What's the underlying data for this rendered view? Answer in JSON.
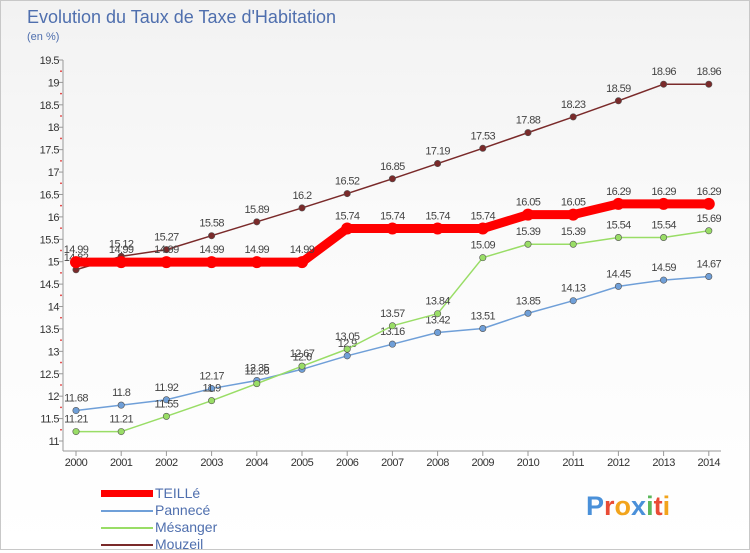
{
  "title": "Evolution du Taux de Taxe d'Habitation",
  "subtitle": "(en %)",
  "logo": {
    "text": "Proxiti",
    "letters": [
      {
        "char": "P",
        "color": "#4a90d9"
      },
      {
        "char": "r",
        "color": "#e94b35"
      },
      {
        "char": "o",
        "color": "#f2a41c"
      },
      {
        "char": "x",
        "color": "#4a90d9"
      },
      {
        "char": "i",
        "color": "#5cb85c"
      },
      {
        "char": "t",
        "color": "#e94b35"
      },
      {
        "char": "i",
        "color": "#f2a41c"
      }
    ]
  },
  "chart_data": {
    "type": "line",
    "title": "Evolution du Taux de Taxe d'Habitation",
    "ylabel": "(en %)",
    "x": [
      "2000",
      "2001",
      "2002",
      "2003",
      "2004",
      "2005",
      "2006",
      "2007",
      "2008",
      "2009",
      "2010",
      "2011",
      "2012",
      "2013",
      "2014"
    ],
    "ylim": [
      11,
      19.5
    ],
    "yticks": [
      "11",
      "11.5",
      "12",
      "12.5",
      "13",
      "13.5",
      "14",
      "14.5",
      "15",
      "15.5",
      "16",
      "16.5",
      "17",
      "17.5",
      "18",
      "18.5",
      "19",
      "19.5"
    ],
    "grid": false,
    "legend_position": "bottom-left",
    "series": [
      {
        "name": "TEILLé",
        "color": "#ff0000",
        "emphasis": true,
        "values": [
          14.99,
          14.99,
          14.99,
          14.99,
          14.99,
          14.99,
          15.74,
          15.74,
          15.74,
          15.74,
          16.05,
          16.05,
          16.29,
          16.29,
          16.29
        ],
        "labels": [
          "14.99",
          "14.99",
          "14.99",
          "14.99",
          "14.99",
          "14.99",
          "15.74",
          "15.74",
          "15.74",
          "15.74",
          "16.05",
          "16.05",
          "16.29",
          "16.29",
          "16.29"
        ]
      },
      {
        "name": "Pannecé",
        "color": "#6f9fd8",
        "values": [
          11.68,
          11.8,
          11.92,
          12.17,
          12.35,
          12.6,
          12.9,
          13.16,
          13.42,
          13.51,
          13.85,
          14.13,
          14.45,
          14.59,
          14.67
        ],
        "labels": [
          "11.68",
          "11.8",
          "11.92",
          "12.17",
          "12.35",
          "12.6",
          "12.9",
          "13.16",
          "13.42",
          "13.51",
          "13.85",
          "14.13",
          "14.45",
          "14.59",
          "14.67"
        ]
      },
      {
        "name": "Mésanger",
        "color": "#99dd66",
        "values": [
          11.21,
          11.21,
          11.55,
          11.9,
          12.28,
          12.67,
          13.05,
          13.57,
          13.84,
          15.09,
          15.39,
          15.39,
          15.54,
          15.54,
          15.69
        ],
        "labels": [
          "11.21",
          "11.21",
          "11.55",
          "11.9",
          "12.28",
          "12.67",
          "13.05",
          "13.57",
          "13.84",
          "15.09",
          "15.39",
          "15.39",
          "15.54",
          "15.54",
          "15.69"
        ]
      },
      {
        "name": "Mouzeil",
        "color": "#7a2a2a",
        "values": [
          14.82,
          15.12,
          15.27,
          15.58,
          15.89,
          16.2,
          16.52,
          16.85,
          17.19,
          17.53,
          17.88,
          18.23,
          18.59,
          18.96,
          18.96
        ],
        "labels": [
          "14.82",
          "15.12",
          "15.27",
          "15.58",
          "15.89",
          "16.2",
          "16.52",
          "16.85",
          "17.19",
          "17.53",
          "17.88",
          "18.23",
          "18.59",
          "18.96",
          "18.96"
        ]
      }
    ]
  }
}
